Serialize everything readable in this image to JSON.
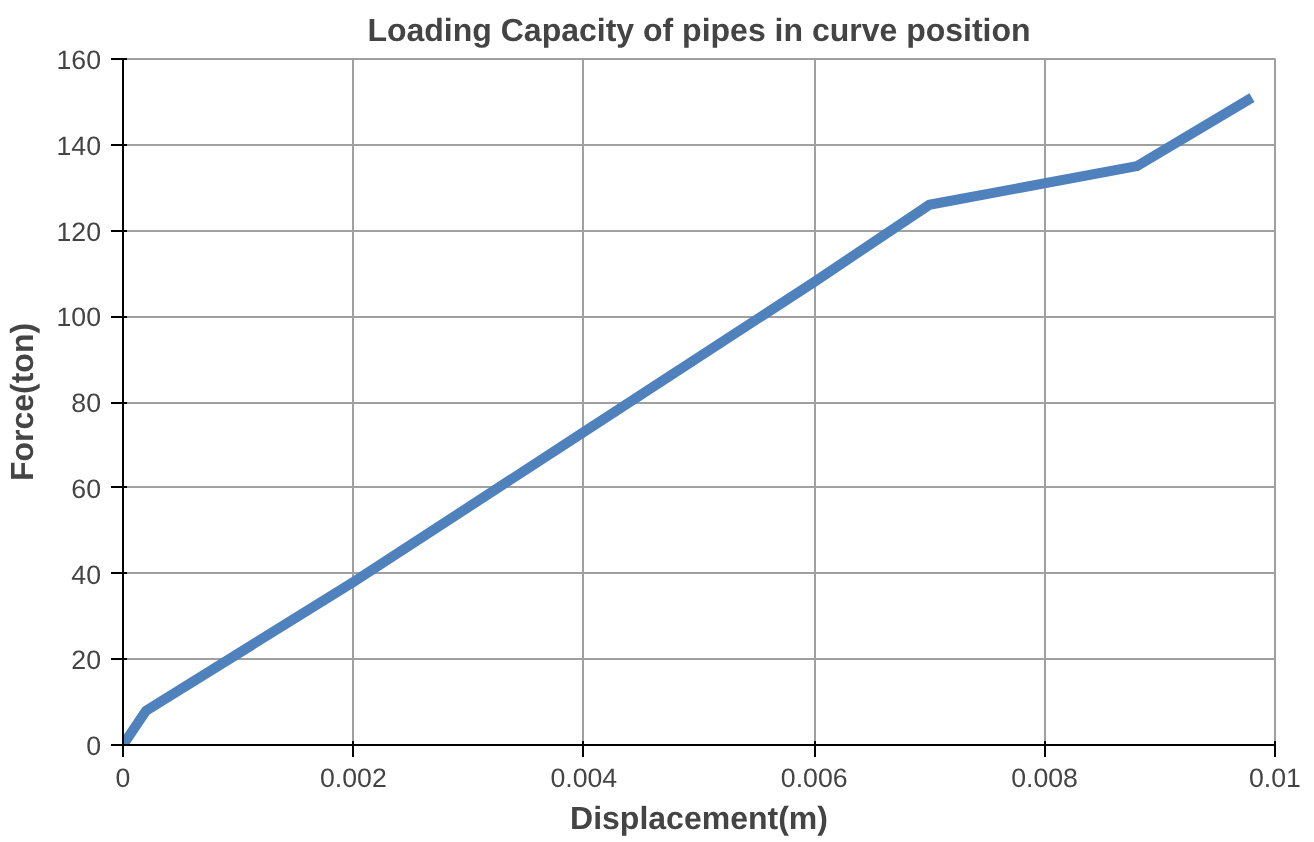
{
  "chart_data": {
    "type": "line",
    "title": "Loading Capacity of pipes in curve position",
    "xlabel": "Displacement(m)",
    "ylabel": "Force(ton)",
    "x": [
      0,
      0.0002,
      0.002,
      0.004,
      0.006,
      0.007,
      0.0088,
      0.0098
    ],
    "series": [
      {
        "color": "#4f81bd",
        "values": [
          0,
          8,
          38,
          73,
          108,
          126,
          135,
          151
        ]
      }
    ],
    "xlim": [
      0,
      0.01
    ],
    "xticks": [
      0,
      0.002,
      0.004,
      0.006,
      0.008,
      0.01
    ],
    "ylim": [
      0,
      160
    ],
    "yticks": [
      0,
      20,
      40,
      60,
      80,
      100,
      120,
      140,
      160
    ],
    "grid": true,
    "marker": "none",
    "line_style": "solid"
  }
}
